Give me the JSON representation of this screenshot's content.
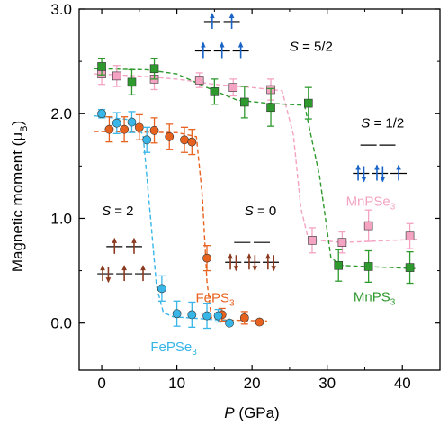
{
  "chart_data": {
    "type": "scatter",
    "xlabel": {
      "var": "P",
      "unit": "(GPa)"
    },
    "ylabel": "Magnetic moment (μ",
    "ylabel_sub": "B",
    "ylabel_close": ")",
    "xlim": [
      -3,
      45
    ],
    "ylim": [
      -0.45,
      3.0
    ],
    "xticks": [
      0,
      10,
      20,
      30,
      40
    ],
    "yticks": [
      0.0,
      1.0,
      2.0,
      3.0
    ],
    "ytick_labels": [
      "0.0",
      "1.0",
      "2.0",
      "3.0"
    ],
    "series": [
      {
        "name": "MnPSe",
        "name_sub": "3",
        "color": "#f4a3c2",
        "marker": "square",
        "x": [
          0,
          2,
          7,
          13,
          17.5,
          22.5,
          28,
          32,
          35.5,
          41
        ],
        "y": [
          2.38,
          2.36,
          2.33,
          2.32,
          2.25,
          2.23,
          0.79,
          0.77,
          0.93,
          0.83
        ],
        "err": [
          0.1,
          0.1,
          0.1,
          0.07,
          0.08,
          0.1,
          0.12,
          0.1,
          0.15,
          0.12
        ],
        "fit_x": [
          -1,
          5,
          10,
          15,
          20,
          24,
          25.5,
          26.5,
          27.5,
          32,
          42
        ],
        "fit_y": [
          2.38,
          2.36,
          2.33,
          2.28,
          2.25,
          2.22,
          1.8,
          1.1,
          0.8,
          0.77,
          0.8
        ]
      },
      {
        "name": "MnPS",
        "name_sub": "3",
        "color": "#2e9a2e",
        "marker": "square",
        "x": [
          0,
          4,
          7,
          15,
          19,
          22.5,
          27.5,
          31.5,
          35.5,
          41
        ],
        "y": [
          2.45,
          2.3,
          2.43,
          2.21,
          2.11,
          2.06,
          2.1,
          0.55,
          0.54,
          0.53
        ],
        "err": [
          0.08,
          0.12,
          0.1,
          0.12,
          0.15,
          0.18,
          0.15,
          0.15,
          0.15,
          0.15
        ],
        "fit_x": [
          -1,
          6,
          10,
          14,
          18,
          22,
          27,
          29,
          30.5,
          32,
          42
        ],
        "fit_y": [
          2.43,
          2.42,
          2.38,
          2.25,
          2.13,
          2.1,
          2.08,
          1.4,
          0.62,
          0.55,
          0.52
        ]
      },
      {
        "name": "FePS",
        "name_sub": "3",
        "color": "#e8621f",
        "marker": "circle",
        "x": [
          1,
          3,
          5,
          7,
          9,
          11,
          12,
          14,
          16,
          19,
          21
        ],
        "y": [
          1.85,
          1.85,
          1.87,
          1.84,
          1.78,
          1.75,
          1.73,
          0.62,
          0.08,
          0.05,
          0.01
        ],
        "err": [
          0.12,
          0.12,
          0.12,
          0.12,
          0.12,
          0.12,
          0.12,
          0.12,
          0.06,
          0.06,
          0.0
        ],
        "fit_x": [
          -1,
          10,
          12.6,
          13.4,
          14,
          14.6,
          16,
          22
        ],
        "fit_y": [
          1.83,
          1.82,
          1.78,
          1.2,
          0.4,
          0.05,
          0.03,
          0.02
        ]
      },
      {
        "name": "FePSe",
        "name_sub": "3",
        "color": "#38b6e8",
        "marker": "circle",
        "x": [
          0,
          2,
          4,
          6,
          8,
          10,
          12,
          14,
          15.5,
          17
        ],
        "y": [
          2.0,
          1.91,
          1.92,
          1.75,
          0.33,
          0.09,
          0.08,
          0.07,
          0.07,
          0.0
        ],
        "err": [
          0.04,
          0.1,
          0.1,
          0.12,
          0.12,
          0.12,
          0.12,
          0.12,
          0.06,
          0.0
        ],
        "fit_x": [
          -1,
          4,
          5.5,
          6.5,
          7.3,
          8.2,
          9.5,
          17.5
        ],
        "fit_y": [
          1.98,
          1.94,
          1.8,
          1.0,
          0.35,
          0.1,
          0.06,
          0.02
        ]
      }
    ],
    "series_labels": [
      {
        "series": 0,
        "text": "MnPSe",
        "sub": "3",
        "x": 32.5,
        "y": 1.12
      },
      {
        "series": 1,
        "text": "MnPS",
        "sub": "3",
        "x": 33.5,
        "y": 0.21
      },
      {
        "series": 2,
        "text": "FePS",
        "sub": "3",
        "x": 12.5,
        "y": 0.2
      },
      {
        "series": 3,
        "text": "FePSe",
        "sub": "3",
        "x": 6.5,
        "y": -0.27
      }
    ],
    "annotations": [
      {
        "italic": "S",
        "text": " = 5/2",
        "x": 25,
        "y": 2.6
      },
      {
        "italic": "S",
        "text": " = 1/2",
        "x": 34.5,
        "y": 1.87
      },
      {
        "italic": "S",
        "text": " = 2",
        "x": 0,
        "y": 1.03
      },
      {
        "italic": "S",
        "text": " = 0",
        "x": 19,
        "y": 1.03
      }
    ],
    "spin_diagrams": [
      {
        "name": "s52-diagram",
        "color": "#1a64c8",
        "rows": [
          {
            "y": 2.88,
            "x": [
              14.7,
              17.3
            ],
            "arrows": [
              "up",
              "up"
            ]
          },
          {
            "y": 2.6,
            "x": [
              13.5,
              16.0,
              18.5
            ],
            "arrows": [
              "up",
              "up",
              "up"
            ]
          }
        ]
      },
      {
        "name": "s12-diagram",
        "color": "#1a64c8",
        "rows": [
          {
            "y": 1.7,
            "x": [
              35.5,
              38.0
            ],
            "arrows": [
              "",
              ""
            ]
          },
          {
            "y": 1.43,
            "x": [
              34.5,
              37.0,
              39.5
            ],
            "arrows": [
              "updown",
              "updown",
              "up"
            ]
          }
        ]
      },
      {
        "name": "s2-diagram",
        "color": "#8b3a1f",
        "rows": [
          {
            "y": 0.73,
            "x": [
              1.7,
              4.3
            ],
            "arrows": [
              "up",
              "up"
            ]
          },
          {
            "y": 0.47,
            "x": [
              0.5,
              3.0,
              5.5
            ],
            "arrows": [
              "updown",
              "up",
              "up"
            ]
          }
        ]
      },
      {
        "name": "s0-diagram",
        "color": "#8b3a1f",
        "rows": [
          {
            "y": 0.77,
            "x": [
              18.7,
              21.3
            ],
            "arrows": [
              "",
              ""
            ]
          },
          {
            "y": 0.58,
            "x": [
              17.5,
              20.0,
              22.5
            ],
            "arrows": [
              "updown",
              "updown",
              "updown"
            ]
          }
        ]
      }
    ]
  }
}
